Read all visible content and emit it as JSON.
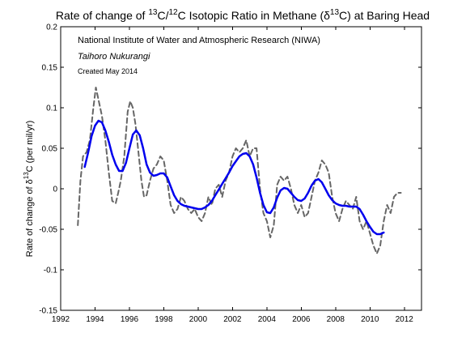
{
  "chart_data": {
    "type": "line",
    "title": {
      "prefix": "Rate of change of ",
      "sup1": "13",
      "mid1": "C/",
      "sup2": "12",
      "mid2": "C Isotopic Ratio in Methane (δ",
      "sup3": "13",
      "suffix": "C) at Baring Head"
    },
    "ylabel": {
      "prefix": "Rate of change of δ",
      "sup": "13",
      "suffix": "C (per mil/yr)"
    },
    "xlabel": "",
    "xlim": [
      1992,
      2013
    ],
    "ylim": [
      -0.15,
      0.2
    ],
    "x_ticks": [
      "1992",
      "1994",
      "1996",
      "1998",
      "2000",
      "2002",
      "2004",
      "2006",
      "2008",
      "2010",
      "2012"
    ],
    "y_ticks": [
      "-0.15",
      "-0.1",
      "-0.05",
      "0",
      "0.05",
      "0.1",
      "0.15",
      "0.2"
    ],
    "grid": false,
    "annotations": [
      "National Institute of Water and Atmospheric Research (NIWA)",
      "Taihoro Nukurangi",
      "Created May 2014"
    ],
    "series": [
      {
        "style": "dashed",
        "color": "#666666",
        "x": [
          1993.0,
          1993.15,
          1993.3,
          1993.5,
          1993.7,
          1993.9,
          1994.05,
          1994.2,
          1994.4,
          1994.6,
          1994.8,
          1995.0,
          1995.2,
          1995.35,
          1995.5,
          1995.7,
          1995.9,
          1996.05,
          1996.2,
          1996.35,
          1996.5,
          1996.7,
          1996.85,
          1997.0,
          1997.2,
          1997.4,
          1997.6,
          1997.8,
          1998.0,
          1998.2,
          1998.4,
          1998.6,
          1998.8,
          1999.0,
          1999.2,
          1999.4,
          1999.6,
          1999.8,
          2000.0,
          2000.2,
          2000.4,
          2000.6,
          2000.8,
          2001.0,
          2001.2,
          2001.4,
          2001.6,
          2001.8,
          2002.0,
          2002.2,
          2002.4,
          2002.6,
          2002.8,
          2003.0,
          2003.2,
          2003.4,
          2003.6,
          2003.8,
          2004.0,
          2004.2,
          2004.4,
          2004.6,
          2004.8,
          2005.0,
          2005.2,
          2005.4,
          2005.6,
          2005.8,
          2006.0,
          2006.2,
          2006.4,
          2006.6,
          2006.8,
          2007.0,
          2007.2,
          2007.4,
          2007.6,
          2007.8,
          2008.0,
          2008.2,
          2008.4,
          2008.6,
          2008.8,
          2009.0,
          2009.2,
          2009.4,
          2009.6,
          2009.8,
          2010.0,
          2010.2,
          2010.4,
          2010.6,
          2010.8,
          2011.0,
          2011.2,
          2011.4,
          2011.6,
          2011.8
        ],
        "y": [
          -0.045,
          0.01,
          0.04,
          0.045,
          0.06,
          0.1,
          0.125,
          0.11,
          0.09,
          0.06,
          0.02,
          -0.015,
          -0.018,
          -0.005,
          0.01,
          0.04,
          0.095,
          0.108,
          0.1,
          0.08,
          0.05,
          0.01,
          -0.01,
          -0.008,
          0.01,
          0.025,
          0.03,
          0.04,
          0.035,
          0.01,
          -0.02,
          -0.03,
          -0.025,
          -0.01,
          -0.015,
          -0.025,
          -0.03,
          -0.025,
          -0.035,
          -0.04,
          -0.03,
          -0.01,
          -0.02,
          0.0,
          0.005,
          -0.01,
          0.01,
          0.02,
          0.04,
          0.05,
          0.045,
          0.05,
          0.06,
          0.04,
          0.05,
          0.05,
          0.0,
          -0.03,
          -0.04,
          -0.06,
          -0.045,
          0.005,
          0.015,
          0.01,
          0.015,
          0.0,
          -0.02,
          -0.03,
          -0.02,
          -0.035,
          -0.03,
          -0.01,
          0.01,
          0.02,
          0.035,
          0.03,
          0.02,
          -0.01,
          -0.03,
          -0.04,
          -0.025,
          -0.015,
          -0.02,
          -0.025,
          -0.01,
          -0.04,
          -0.05,
          -0.04,
          -0.055,
          -0.07,
          -0.08,
          -0.07,
          -0.04,
          -0.02,
          -0.03,
          -0.01,
          -0.005,
          -0.005
        ]
      },
      {
        "style": "solid",
        "color": "#0000ee",
        "x": [
          1993.4,
          1993.6,
          1993.8,
          1994.0,
          1994.2,
          1994.4,
          1994.6,
          1994.8,
          1995.0,
          1995.2,
          1995.4,
          1995.6,
          1995.8,
          1996.0,
          1996.2,
          1996.4,
          1996.6,
          1996.8,
          1997.0,
          1997.2,
          1997.4,
          1997.6,
          1997.8,
          1998.0,
          1998.2,
          1998.4,
          1998.6,
          1998.8,
          1999.0,
          1999.2,
          1999.4,
          1999.6,
          1999.8,
          2000.0,
          2000.2,
          2000.4,
          2000.6,
          2000.8,
          2001.0,
          2001.2,
          2001.4,
          2001.6,
          2001.8,
          2002.0,
          2002.2,
          2002.4,
          2002.6,
          2002.8,
          2003.0,
          2003.2,
          2003.4,
          2003.6,
          2003.8,
          2004.0,
          2004.2,
          2004.4,
          2004.6,
          2004.8,
          2005.0,
          2005.2,
          2005.4,
          2005.6,
          2005.8,
          2006.0,
          2006.2,
          2006.4,
          2006.6,
          2006.8,
          2007.0,
          2007.2,
          2007.4,
          2007.6,
          2007.8,
          2008.0,
          2008.2,
          2008.4,
          2008.6,
          2008.8,
          2009.0,
          2009.2,
          2009.4,
          2009.6,
          2009.8,
          2010.0,
          2010.2,
          2010.4,
          2010.6,
          2010.8
        ],
        "y": [
          0.027,
          0.045,
          0.065,
          0.078,
          0.084,
          0.082,
          0.072,
          0.058,
          0.042,
          0.03,
          0.022,
          0.022,
          0.032,
          0.05,
          0.067,
          0.072,
          0.066,
          0.05,
          0.03,
          0.02,
          0.016,
          0.017,
          0.019,
          0.019,
          0.014,
          0.003,
          -0.008,
          -0.015,
          -0.019,
          -0.021,
          -0.022,
          -0.023,
          -0.024,
          -0.025,
          -0.025,
          -0.023,
          -0.02,
          -0.015,
          -0.008,
          -0.001,
          0.006,
          0.013,
          0.02,
          0.028,
          0.034,
          0.04,
          0.043,
          0.044,
          0.04,
          0.03,
          0.014,
          -0.005,
          -0.02,
          -0.029,
          -0.03,
          -0.023,
          -0.011,
          -0.002,
          0.001,
          0.0,
          -0.005,
          -0.01,
          -0.014,
          -0.015,
          -0.012,
          -0.005,
          0.004,
          0.01,
          0.012,
          0.008,
          0.0,
          -0.008,
          -0.014,
          -0.018,
          -0.02,
          -0.021,
          -0.021,
          -0.022,
          -0.022,
          -0.022,
          -0.025,
          -0.032,
          -0.04,
          -0.047,
          -0.053,
          -0.056,
          -0.056,
          -0.054
        ]
      }
    ]
  }
}
